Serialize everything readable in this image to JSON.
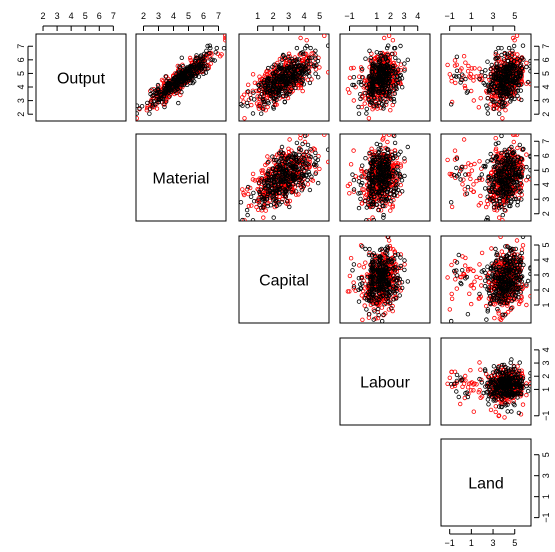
{
  "chart_data": {
    "type": "scatter",
    "variables": [
      "Output",
      "Material",
      "Capital",
      "Labour",
      "Land"
    ],
    "layout": "upper-triangle pairs matrix; variable names on diagonal",
    "axis_ticks": {
      "Output": [
        2,
        3,
        4,
        5,
        6,
        7
      ],
      "Material": [
        2,
        3,
        4,
        5,
        6,
        7
      ],
      "Capital": [
        1,
        2,
        3,
        4,
        5
      ],
      "Labour": [
        -1,
        1,
        2,
        3,
        4
      ],
      "Land": [
        -1,
        1,
        3,
        5
      ]
    },
    "axis_ranges": {
      "Output": [
        1.5,
        7.9
      ],
      "Material": [
        1.5,
        7.5
      ],
      "Capital": [
        -0.2,
        5.6
      ],
      "Labour": [
        -1.7,
        4.9
      ],
      "Land": [
        -1.8,
        6.5
      ]
    },
    "series": [
      {
        "color": "#ff0000",
        "marker": "open-circle"
      },
      {
        "color": "#000000",
        "marker": "open-circle"
      }
    ],
    "panels": [
      {
        "x": "Material",
        "y": "Output",
        "relation": "strong positive linear"
      },
      {
        "x": "Capital",
        "y": "Output",
        "relation": "positive"
      },
      {
        "x": "Labour",
        "y": "Output",
        "relation": "weak positive"
      },
      {
        "x": "Land",
        "y": "Output",
        "relation": "weak positive"
      },
      {
        "x": "Capital",
        "y": "Material",
        "relation": "positive"
      },
      {
        "x": "Labour",
        "y": "Material",
        "relation": "weak positive"
      },
      {
        "x": "Land",
        "y": "Material",
        "relation": "weak positive"
      },
      {
        "x": "Labour",
        "y": "Capital",
        "relation": "weak positive"
      },
      {
        "x": "Land",
        "y": "Capital",
        "relation": "weak positive"
      },
      {
        "x": "Land",
        "y": "Labour",
        "relation": "none"
      }
    ]
  }
}
